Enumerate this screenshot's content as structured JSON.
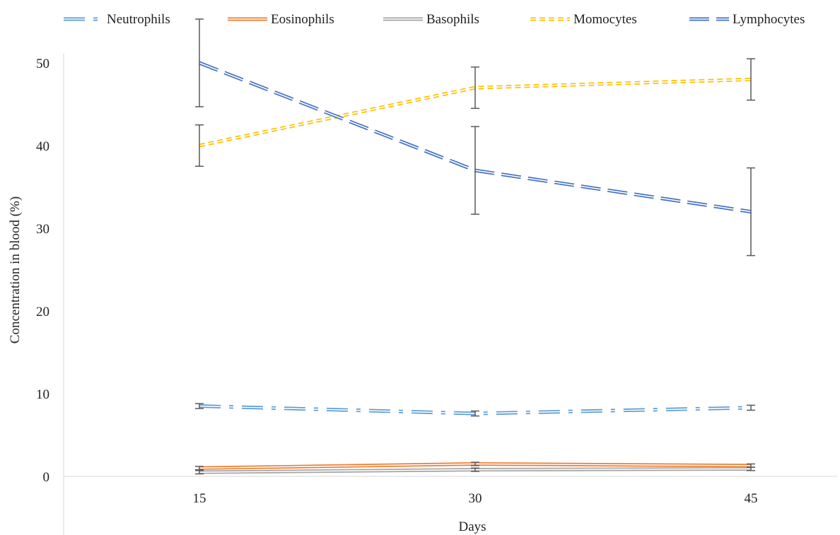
{
  "chart_data": {
    "type": "line",
    "xlabel": "Days",
    "ylabel": "Concentration in blood (%)",
    "x": [
      15,
      30,
      45
    ],
    "ylim": [
      0,
      50
    ],
    "yticks": [
      0,
      10,
      20,
      30,
      40,
      50
    ],
    "legend_position": "top",
    "grid": false,
    "series": [
      {
        "name": "Neutrophils",
        "values": [
          8.5,
          7.6,
          8.3
        ],
        "error": [
          0.3,
          0.3,
          0.3
        ],
        "color": "#5b9bd5",
        "style": "dash-dot-double"
      },
      {
        "name": "Eosinophils",
        "values": [
          1.0,
          1.5,
          1.3
        ],
        "error": [
          0.2,
          0.2,
          0.2
        ],
        "color": "#ed7d31",
        "style": "solid-double"
      },
      {
        "name": "Basophils",
        "values": [
          0.5,
          0.8,
          0.9
        ],
        "error": [
          0.2,
          0.2,
          0.2
        ],
        "color": "#a5a5a5",
        "style": "solid-double"
      },
      {
        "name": "Momocytes",
        "values": [
          40.0,
          47.0,
          48.0
        ],
        "error": [
          2.5,
          2.5,
          2.5
        ],
        "color": "#ffc000",
        "style": "dotted-double"
      },
      {
        "name": "Lymphocytes",
        "values": [
          50.0,
          37.0,
          32.0
        ],
        "error": [
          5.3,
          5.3,
          5.3
        ],
        "color": "#4472c4",
        "style": "dashed-double"
      }
    ]
  }
}
